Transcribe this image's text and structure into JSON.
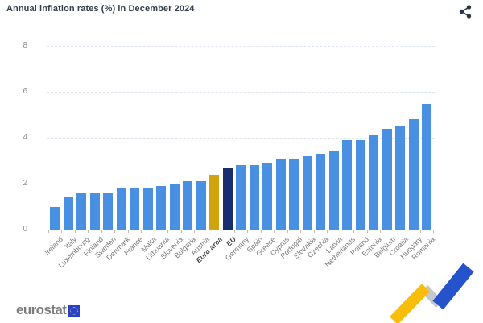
{
  "header": {
    "title": "Annual inflation rates (%) in December 2024",
    "share_icon": "share-icon"
  },
  "footer": {
    "brand": "eurostat",
    "flag_icon": "eu-flag-icon",
    "decoration_icon": "trend-ribbon-logo"
  },
  "colors": {
    "bar_default": "#4a90e2",
    "bar_euro_area": "#cfa50e",
    "bar_eu": "#1a2d6e",
    "grid": "#dce3ee",
    "axis": "#cfcfcf",
    "title_text": "#333e4e",
    "tick_text": "#8f8f8f",
    "label_text": "#7a7a7a"
  },
  "chart_data": {
    "type": "bar",
    "title": "Annual inflation rates (%) in December 2024",
    "xlabel": "",
    "ylabel": "",
    "ylim": [
      0,
      8
    ],
    "yticks": [
      0,
      2,
      4,
      6,
      8
    ],
    "grid": "horizontal-dashed",
    "legend_position": "none",
    "categories": [
      "Ireland",
      "Italy",
      "Luxembourg",
      "Finland",
      "Sweden",
      "Denmark",
      "France",
      "Malta",
      "Lithuania",
      "Slovenia",
      "Bulgaria",
      "Austria",
      "Euro area",
      "EU",
      "Germany",
      "Spain",
      "Greece",
      "Cyprus",
      "Portugal",
      "Slovakia",
      "Czechia",
      "Latvia",
      "Netherlands",
      "Poland",
      "Estonia",
      "Belgium",
      "Croatia",
      "Hungary",
      "Romania"
    ],
    "values": [
      1.0,
      1.4,
      1.6,
      1.6,
      1.6,
      1.8,
      1.8,
      1.8,
      1.9,
      2.0,
      2.1,
      2.1,
      2.4,
      2.7,
      2.8,
      2.8,
      2.9,
      3.1,
      3.1,
      3.2,
      3.3,
      3.4,
      3.9,
      3.9,
      4.1,
      4.4,
      4.5,
      4.8,
      5.5
    ],
    "highlighted_categories": [
      "Euro area",
      "EU"
    ]
  }
}
